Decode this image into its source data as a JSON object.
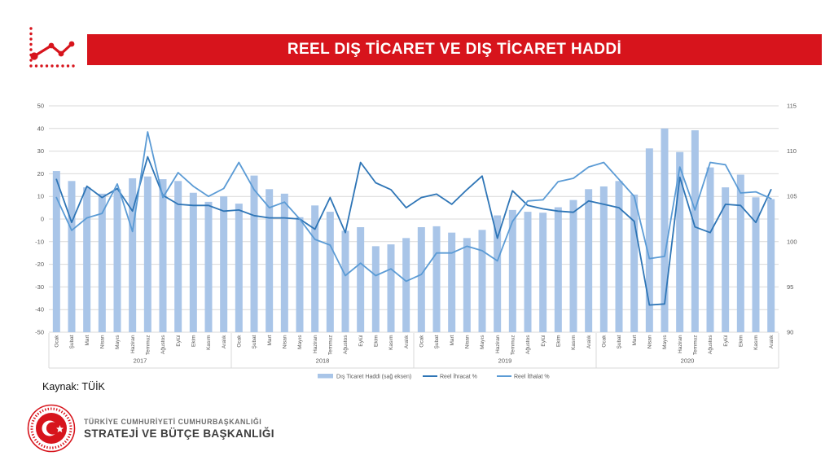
{
  "header": {
    "title": "REEL DIŞ TİCARET VE DIŞ TİCARET HADDİ"
  },
  "colors": {
    "banner_red": "#d7141c",
    "bar_fill": "#a9c5e8",
    "export_line": "#2e75b6",
    "import_line": "#5b9bd5",
    "grid": "#d9d9d9",
    "axis_text": "#595959",
    "separator": "#d9d9d9"
  },
  "chart_data": {
    "type": "combo",
    "title": "REEL DIŞ TİCARET VE DIŞ TİCARET HADDİ",
    "left_axis": {
      "min": -50,
      "max": 50,
      "tick_step": 10,
      "ticks": [
        50,
        40,
        30,
        20,
        10,
        0,
        -10,
        -20,
        -30,
        -40,
        -50
      ]
    },
    "right_axis": {
      "min": 90,
      "max": 115,
      "tick_step": 5,
      "ticks": [
        115,
        110,
        105,
        100,
        95,
        90
      ]
    },
    "grid": "horizontal",
    "legend_position": "bottom",
    "years": [
      "2017",
      "2018",
      "2019",
      "2020"
    ],
    "months": [
      "Ocak",
      "Şubat",
      "Mart",
      "Nisan",
      "Mayıs",
      "Haziran",
      "Temmuz",
      "Ağustos",
      "Eylül",
      "Ekim",
      "Kasım",
      "Aralık"
    ],
    "series": [
      {
        "name": "Dış Ticaret Haddi (sağ eksen)",
        "type": "bar",
        "axis": "right",
        "color": "#a9c5e8",
        "values": [
          107.8,
          106.7,
          106.0,
          105.3,
          105.8,
          107.0,
          107.2,
          106.9,
          106.7,
          105.4,
          104.4,
          105.0,
          104.2,
          107.3,
          105.8,
          105.3,
          102.7,
          104.0,
          103.3,
          101.2,
          101.6,
          99.5,
          99.7,
          100.4,
          101.6,
          101.7,
          101.0,
          100.4,
          101.3,
          102.9,
          103.5,
          103.3,
          103.2,
          103.8,
          104.6,
          105.8,
          106.1,
          106.7,
          105.2,
          110.3,
          112.5,
          109.9,
          112.3,
          108.2,
          106.0,
          107.4,
          104.9,
          104.7
        ]
      },
      {
        "name": "Reel İhracat %",
        "type": "line",
        "axis": "left",
        "color": "#2e75b6",
        "values": [
          17.5,
          -1.5,
          14.5,
          9.5,
          13.5,
          3.5,
          27.5,
          10.5,
          6.5,
          6,
          6,
          3.5,
          4,
          1.5,
          0.5,
          0.5,
          0,
          -4.5,
          9.5,
          -6,
          25,
          16,
          13,
          5,
          9.5,
          11,
          6.5,
          13,
          19,
          -8.5,
          12.5,
          6,
          4.5,
          3.5,
          3,
          8,
          6.5,
          5,
          -1,
          -38,
          -37.5,
          18.5,
          -3.5,
          -6,
          6.5,
          6,
          -1.5,
          13
        ]
      },
      {
        "name": "Reel İthalat %",
        "type": "line",
        "axis": "left",
        "color": "#5b9bd5",
        "values": [
          9.5,
          -5,
          0.5,
          2.5,
          15.5,
          -5.5,
          38.5,
          9.5,
          20.5,
          14.5,
          10,
          13.5,
          25,
          13,
          5,
          7.5,
          0,
          -9,
          -11.5,
          -25,
          -19.5,
          -25,
          -22,
          -27.5,
          -24.5,
          -15,
          -15,
          -12,
          -14,
          -18.5,
          -1,
          8,
          8.5,
          16.5,
          18,
          23,
          25,
          17.5,
          10,
          -17.5,
          -16.5,
          23,
          4,
          25,
          24,
          11.5,
          12,
          9
        ]
      }
    ]
  },
  "source": {
    "label": "Kaynak: TÜİK"
  },
  "footer": {
    "org_line1": "TÜRKİYE CUMHURİYETİ CUMHURBAŞKANLIĞI",
    "org_line2": "STRATEJİ VE BÜTÇE BAŞKANLIĞI"
  }
}
